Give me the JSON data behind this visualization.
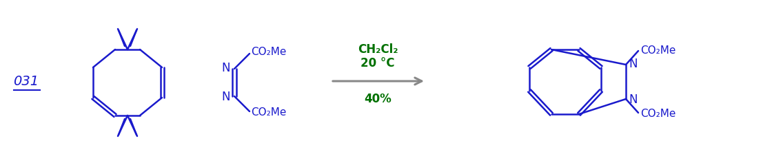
{
  "bg_color": "#ffffff",
  "blue": "#1a1acc",
  "green": "#007000",
  "gray": "#888888",
  "label_031": "031",
  "label_solvent": "CH₂Cl₂",
  "label_temp": "20 °C",
  "label_yield": "40%",
  "co2me": "CO₂Me",
  "N": "N",
  "figsize": [
    11.2,
    2.4
  ],
  "dpi": 100
}
